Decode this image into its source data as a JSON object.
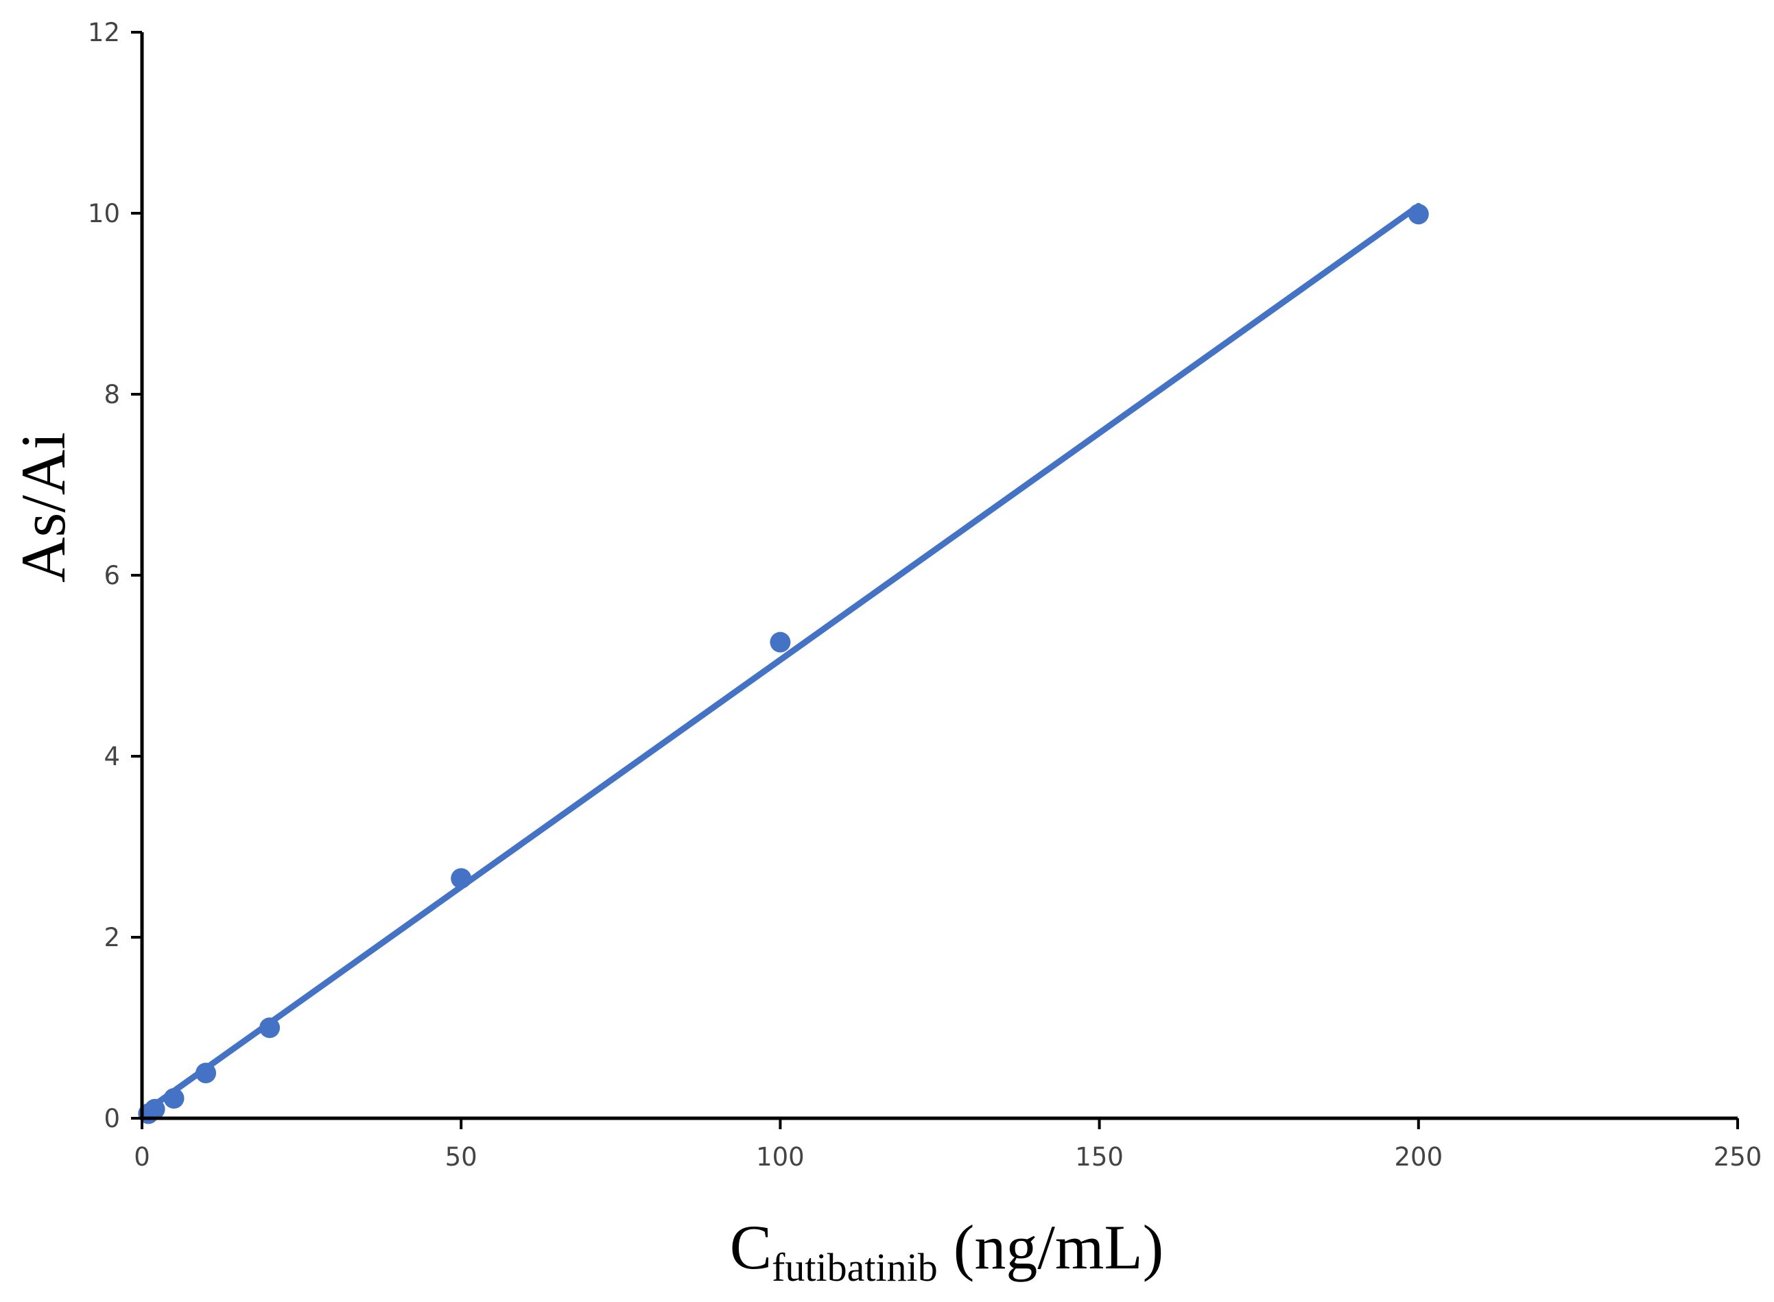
{
  "chart_data": {
    "type": "scatter",
    "title": "",
    "xlabel": {
      "main": "C",
      "sub": "futibatinib",
      "suffix": " (ng/mL)"
    },
    "ylabel": "As/Ai",
    "xlim": [
      0,
      250
    ],
    "ylim": [
      0,
      12
    ],
    "xticks": [
      0,
      50,
      100,
      150,
      200,
      250
    ],
    "yticks": [
      0,
      2,
      4,
      6,
      8,
      10,
      12
    ],
    "grid": false,
    "legend": "none",
    "series": [
      {
        "marker_color": "#4472C4",
        "points": [
          {
            "x": 1,
            "y": 0.05
          },
          {
            "x": 2,
            "y": 0.1
          },
          {
            "x": 5,
            "y": 0.22
          },
          {
            "x": 10,
            "y": 0.5
          },
          {
            "x": 20,
            "y": 1.0
          },
          {
            "x": 50,
            "y": 2.65
          },
          {
            "x": 100,
            "y": 5.26
          },
          {
            "x": 200,
            "y": 9.99
          }
        ]
      }
    ],
    "trendline": {
      "x": [
        0,
        200
      ],
      "y": [
        0.05,
        10.08
      ],
      "color": "#4472C4"
    }
  }
}
